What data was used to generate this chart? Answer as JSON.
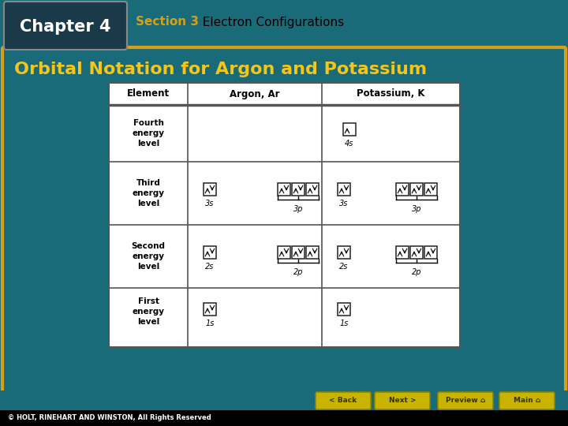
{
  "bg_color": "#1a6b7a",
  "chapter_box_color": "#1a3a4a",
  "chapter_text": "Chapter 4",
  "section_color": "#d4a017",
  "section_text": "Section 3",
  "section_text2": "  Electron Configurations",
  "title_text": "Orbital Notation for Argon and Potassium",
  "title_color": "#f5c518",
  "header_cols": [
    "Element",
    "Argon, Ar",
    "Potassium, K"
  ],
  "row_labels": [
    "Fourth\nenergy\nlevel",
    "Third\nenergy\nlevel",
    "Second\nenergy\nlevel",
    "First\nenergy\nlevel"
  ],
  "table_bg": "#ffffff",
  "footer_text": "© HOLT, RINEHART AND WINSTON, All Rights Reserved",
  "footer_bg": "#000000",
  "footer_color": "#ffffff",
  "nav_bg": "#c8b400",
  "border_color": "#d4a017",
  "table_border": "#555555"
}
